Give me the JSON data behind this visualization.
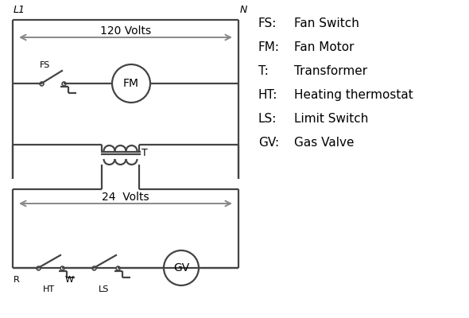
{
  "bg_color": "#ffffff",
  "line_color": "#444444",
  "text_color": "#000000",
  "arrow_color": "#888888",
  "lw": 1.6,
  "legend": [
    [
      "FS:",
      "Fan Switch"
    ],
    [
      "FM:",
      "Fan Motor"
    ],
    [
      "T:",
      "Transformer"
    ],
    [
      "HT:",
      "Heating thermostat"
    ],
    [
      "LS:",
      "Limit Switch"
    ],
    [
      "GV:",
      "Gas Valve"
    ]
  ],
  "L1_label": "L1",
  "N_label": "N",
  "volts120_label": "120 Volts",
  "volts24_label": "24  Volts",
  "T_label": "T",
  "FS_label": "FS",
  "FM_label": "FM",
  "GV_label": "GV",
  "R_label": "R",
  "W_label": "W",
  "HT_label": "HT",
  "LS_label": "LS"
}
